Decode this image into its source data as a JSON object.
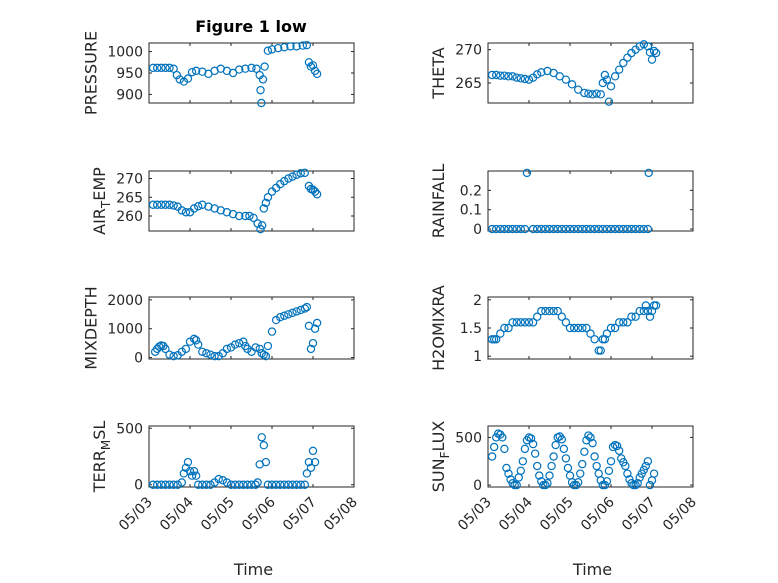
{
  "figure": {
    "title": "Figure 1 low",
    "marker_color": "#0072BD",
    "x_ticks": [
      "05/03",
      "05/04",
      "05/05",
      "05/06",
      "05/07",
      "05/08"
    ]
  },
  "chart_data": [
    {
      "type": "scatter",
      "name": "PRESSURE",
      "ylabel": "PRESSURE",
      "ylabel_parts": [
        "PRESSURE"
      ],
      "title": "Figure 1 low",
      "xlabel": "",
      "xlim": [
        3,
        8
      ],
      "ylim": [
        880,
        1020
      ],
      "yticks": [
        900,
        950,
        1000
      ],
      "ytick_labels": [
        "900",
        "950",
        "1000"
      ],
      "grid": true,
      "minor_grid": true,
      "x": [
        3.1,
        3.2,
        3.3,
        3.4,
        3.5,
        3.6,
        3.68,
        3.75,
        3.85,
        3.95,
        4.05,
        4.15,
        4.3,
        4.45,
        4.6,
        4.75,
        4.9,
        5.05,
        5.2,
        5.35,
        5.5,
        5.62,
        5.7,
        5.72,
        5.74,
        5.78,
        5.82,
        5.9,
        6.0,
        6.15,
        6.3,
        6.45,
        6.6,
        6.75,
        6.85,
        6.9,
        6.95,
        7.0,
        7.05,
        7.1
      ],
      "y": [
        962,
        962,
        962,
        962,
        962,
        960,
        945,
        935,
        930,
        937,
        952,
        955,
        953,
        948,
        955,
        960,
        955,
        950,
        958,
        960,
        962,
        960,
        945,
        910,
        880,
        935,
        965,
        1002,
        1005,
        1008,
        1010,
        1012,
        1012,
        1014,
        1015,
        975,
        965,
        968,
        955,
        948
      ]
    },
    {
      "type": "scatter",
      "name": "THETA",
      "ylabel": "THETA",
      "ylabel_parts": [
        "THETA"
      ],
      "xlabel": "",
      "xlim": [
        3,
        8
      ],
      "ylim": [
        262,
        271
      ],
      "yticks": [
        265,
        270
      ],
      "ytick_labels": [
        "265",
        "270"
      ],
      "grid": true,
      "minor_grid": true,
      "x": [
        3.1,
        3.2,
        3.3,
        3.4,
        3.5,
        3.6,
        3.7,
        3.8,
        3.9,
        4.0,
        4.1,
        4.2,
        4.3,
        4.45,
        4.6,
        4.75,
        4.9,
        5.05,
        5.2,
        5.35,
        5.45,
        5.55,
        5.65,
        5.75,
        5.8,
        5.85,
        5.9,
        5.95,
        6.0,
        6.1,
        6.2,
        6.3,
        6.4,
        6.5,
        6.6,
        6.7,
        6.8,
        6.9,
        6.95,
        7.0,
        7.05,
        7.1
      ],
      "y": [
        266.2,
        266.2,
        266.1,
        266.1,
        266.0,
        266.0,
        265.8,
        265.7,
        265.6,
        265.5,
        265.8,
        266.3,
        266.6,
        266.8,
        266.5,
        266.0,
        265.5,
        264.8,
        264.0,
        263.5,
        263.4,
        263.3,
        263.4,
        263.3,
        265.0,
        266.2,
        265.5,
        262.2,
        264.5,
        266.0,
        267.0,
        268.0,
        268.8,
        269.5,
        270.0,
        270.5,
        270.8,
        270.5,
        269.6,
        268.5,
        269.8,
        269.5
      ]
    },
    {
      "type": "scatter",
      "name": "AIR_TEMP",
      "ylabel": "AIR_TEMP",
      "ylabel_parts": [
        "AIR",
        "T",
        "EMP"
      ],
      "xlabel": "",
      "xlim": [
        3,
        8
      ],
      "ylim": [
        256,
        272
      ],
      "yticks": [
        260,
        265,
        270
      ],
      "ytick_labels": [
        "260",
        "265",
        "270"
      ],
      "grid": true,
      "minor_grid": true,
      "x": [
        3.1,
        3.2,
        3.3,
        3.4,
        3.5,
        3.6,
        3.7,
        3.8,
        3.9,
        4.0,
        4.1,
        4.2,
        4.3,
        4.45,
        4.6,
        4.75,
        4.9,
        5.05,
        5.2,
        5.35,
        5.45,
        5.55,
        5.65,
        5.72,
        5.76,
        5.8,
        5.85,
        5.9,
        6.0,
        6.1,
        6.2,
        6.3,
        6.4,
        6.5,
        6.6,
        6.7,
        6.8,
        6.9,
        6.95,
        7.0,
        7.05,
        7.1
      ],
      "y": [
        263.0,
        263.0,
        263.0,
        263.0,
        263.0,
        262.8,
        262.5,
        261.5,
        261.0,
        261.0,
        262.0,
        262.6,
        263.0,
        262.5,
        262.0,
        261.5,
        261.0,
        260.5,
        260.0,
        260.0,
        260.0,
        259.5,
        258.0,
        256.5,
        257.5,
        262.0,
        263.5,
        265.0,
        266.5,
        267.5,
        268.5,
        269.3,
        270.0,
        270.5,
        271.0,
        271.4,
        271.5,
        268.0,
        267.2,
        267.0,
        266.5,
        265.8
      ]
    },
    {
      "type": "scatter",
      "name": "RAINFALL",
      "ylabel": "RAINFALL",
      "ylabel_parts": [
        "RAINFALL"
      ],
      "xlabel": "",
      "xlim": [
        3,
        8
      ],
      "ylim": [
        -0.01,
        0.3
      ],
      "yticks": [
        0,
        0.1,
        0.2
      ],
      "ytick_labels": [
        "0",
        "0.1",
        "0.2"
      ],
      "grid": true,
      "minor_grid": true,
      "x": [
        3.1,
        3.2,
        3.3,
        3.4,
        3.5,
        3.6,
        3.7,
        3.8,
        3.9,
        3.95,
        4.1,
        4.2,
        4.3,
        4.4,
        4.5,
        4.6,
        4.7,
        4.8,
        4.9,
        5.0,
        5.1,
        5.2,
        5.3,
        5.4,
        5.5,
        5.6,
        5.7,
        5.8,
        5.9,
        6.0,
        6.1,
        6.2,
        6.3,
        6.4,
        6.5,
        6.6,
        6.7,
        6.8,
        6.9,
        6.92
      ],
      "y": [
        0,
        0,
        0,
        0,
        0,
        0,
        0,
        0,
        0,
        0.29,
        0,
        0,
        0,
        0,
        0,
        0,
        0,
        0,
        0,
        0,
        0,
        0,
        0,
        0,
        0,
        0,
        0,
        0,
        0,
        0,
        0,
        0,
        0,
        0,
        0,
        0,
        0,
        0,
        0,
        0.29
      ]
    },
    {
      "type": "scatter",
      "name": "MIXDEPTH",
      "ylabel": "MIXDEPTH",
      "ylabel_parts": [
        "MIXDEPTH"
      ],
      "xlabel": "",
      "xlim": [
        3,
        8
      ],
      "ylim": [
        -50,
        2100
      ],
      "yticks": [
        0,
        1000,
        2000
      ],
      "ytick_labels": [
        "0",
        "1000",
        "2000"
      ],
      "grid": true,
      "minor_grid": true,
      "x": [
        3.15,
        3.2,
        3.25,
        3.3,
        3.35,
        3.4,
        3.5,
        3.6,
        3.7,
        3.8,
        3.9,
        4.0,
        4.1,
        4.15,
        4.2,
        4.3,
        4.4,
        4.5,
        4.6,
        4.7,
        4.8,
        4.9,
        5.0,
        5.1,
        5.2,
        5.3,
        5.35,
        5.4,
        5.5,
        5.6,
        5.7,
        5.75,
        5.8,
        5.85,
        5.9,
        6.0,
        6.1,
        6.2,
        6.3,
        6.4,
        6.5,
        6.6,
        6.7,
        6.8,
        6.85,
        6.9,
        6.95,
        7.0,
        7.05,
        7.1
      ],
      "y": [
        200,
        300,
        380,
        420,
        400,
        300,
        100,
        50,
        80,
        200,
        300,
        550,
        650,
        600,
        450,
        200,
        150,
        100,
        50,
        50,
        150,
        300,
        350,
        450,
        500,
        550,
        400,
        300,
        200,
        350,
        300,
        150,
        100,
        50,
        400,
        900,
        1300,
        1400,
        1450,
        1500,
        1550,
        1600,
        1650,
        1700,
        1750,
        1100,
        300,
        500,
        1000,
        1200
      ]
    },
    {
      "type": "scatter",
      "name": "H2OMIXRA",
      "ylabel": "H2OMIXRA",
      "ylabel_parts": [
        "H2OMIXRA"
      ],
      "xlabel": "",
      "xlim": [
        3,
        8
      ],
      "ylim": [
        0.95,
        2.05
      ],
      "yticks": [
        1,
        1.5,
        2
      ],
      "ytick_labels": [
        "1",
        "1.5",
        "2"
      ],
      "grid": true,
      "minor_grid": true,
      "x": [
        3.1,
        3.15,
        3.2,
        3.3,
        3.4,
        3.5,
        3.6,
        3.7,
        3.8,
        3.9,
        4.0,
        4.1,
        4.2,
        4.3,
        4.4,
        4.5,
        4.6,
        4.7,
        4.8,
        4.9,
        5.0,
        5.1,
        5.2,
        5.3,
        5.4,
        5.5,
        5.6,
        5.7,
        5.75,
        5.8,
        5.85,
        5.9,
        6.0,
        6.1,
        6.2,
        6.3,
        6.4,
        6.5,
        6.6,
        6.7,
        6.8,
        6.85,
        6.9,
        6.95,
        7.0,
        7.05,
        7.1
      ],
      "y": [
        1.3,
        1.3,
        1.3,
        1.4,
        1.5,
        1.5,
        1.6,
        1.6,
        1.6,
        1.6,
        1.6,
        1.6,
        1.7,
        1.8,
        1.8,
        1.8,
        1.8,
        1.8,
        1.7,
        1.6,
        1.5,
        1.5,
        1.5,
        1.5,
        1.5,
        1.4,
        1.3,
        1.1,
        1.1,
        1.3,
        1.3,
        1.4,
        1.5,
        1.5,
        1.6,
        1.6,
        1.6,
        1.7,
        1.7,
        1.8,
        1.8,
        1.9,
        1.8,
        1.7,
        1.8,
        1.9,
        1.9
      ]
    },
    {
      "type": "scatter",
      "name": "TERR_MSL",
      "ylabel": "TERR_MSL",
      "ylabel_parts": [
        "TERR",
        "M",
        "SL"
      ],
      "xlabel": "Time",
      "xlim": [
        3,
        8
      ],
      "ylim": [
        -20,
        520
      ],
      "yticks": [
        0,
        500
      ],
      "ytick_labels": [
        "0",
        "500"
      ],
      "grid": true,
      "minor_grid": true,
      "x": [
        3.1,
        3.2,
        3.3,
        3.4,
        3.5,
        3.6,
        3.7,
        3.8,
        3.85,
        3.9,
        3.95,
        4.0,
        4.05,
        4.1,
        4.15,
        4.2,
        4.3,
        4.4,
        4.5,
        4.6,
        4.7,
        4.8,
        4.9,
        5.0,
        5.1,
        5.2,
        5.3,
        5.4,
        5.5,
        5.6,
        5.65,
        5.7,
        5.75,
        5.8,
        5.85,
        5.9,
        6.0,
        6.1,
        6.2,
        6.3,
        6.4,
        6.5,
        6.6,
        6.7,
        6.8,
        6.85,
        6.9,
        6.95,
        7.0,
        7.05
      ],
      "y": [
        0,
        0,
        0,
        0,
        0,
        0,
        0,
        20,
        100,
        150,
        200,
        120,
        80,
        120,
        80,
        0,
        0,
        0,
        0,
        20,
        50,
        40,
        20,
        0,
        0,
        0,
        0,
        0,
        0,
        0,
        20,
        180,
        420,
        350,
        200,
        0,
        0,
        0,
        0,
        0,
        0,
        0,
        0,
        0,
        0,
        100,
        200,
        150,
        300,
        200
      ]
    },
    {
      "type": "scatter",
      "name": "SUN_FLUX",
      "ylabel": "SUN_FLUX",
      "ylabel_parts": [
        "SUN",
        "F",
        "LUX"
      ],
      "xlabel": "Time",
      "xlim": [
        3,
        8
      ],
      "ylim": [
        -20,
        620
      ],
      "yticks": [
        0,
        500
      ],
      "ytick_labels": [
        "0",
        "500"
      ],
      "grid": true,
      "minor_grid": true,
      "x": [
        3.1,
        3.15,
        3.2,
        3.25,
        3.3,
        3.35,
        3.4,
        3.45,
        3.5,
        3.55,
        3.6,
        3.65,
        3.7,
        3.75,
        3.8,
        3.85,
        3.9,
        3.95,
        4.0,
        4.05,
        4.1,
        4.15,
        4.2,
        4.25,
        4.3,
        4.35,
        4.4,
        4.45,
        4.5,
        4.55,
        4.6,
        4.65,
        4.7,
        4.75,
        4.8,
        4.85,
        4.9,
        4.95,
        5.0,
        5.05,
        5.1,
        5.15,
        5.2,
        5.25,
        5.3,
        5.35,
        5.4,
        5.45,
        5.5,
        5.55,
        5.6,
        5.65,
        5.7,
        5.75,
        5.8,
        5.85,
        5.9,
        5.95,
        6.0,
        6.05,
        6.1,
        6.15,
        6.2,
        6.25,
        6.3,
        6.35,
        6.4,
        6.45,
        6.5,
        6.55,
        6.6,
        6.65,
        6.7,
        6.75,
        6.8,
        6.85,
        6.9,
        6.95,
        7.0,
        7.05
      ],
      "y": [
        300,
        400,
        500,
        540,
        530,
        500,
        380,
        180,
        120,
        60,
        20,
        0,
        0,
        80,
        150,
        250,
        380,
        470,
        500,
        490,
        430,
        330,
        200,
        100,
        40,
        0,
        0,
        20,
        100,
        200,
        300,
        420,
        500,
        510,
        480,
        380,
        280,
        180,
        100,
        30,
        0,
        0,
        30,
        120,
        220,
        350,
        470,
        520,
        500,
        440,
        300,
        200,
        120,
        50,
        0,
        0,
        40,
        150,
        250,
        400,
        420,
        410,
        360,
        280,
        240,
        200,
        120,
        60,
        20,
        0,
        0,
        20,
        80,
        120,
        160,
        200,
        250,
        0,
        50,
        120
      ]
    }
  ]
}
